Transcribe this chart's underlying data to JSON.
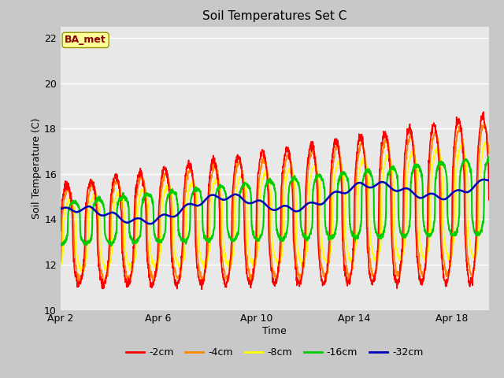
{
  "title": "Soil Temperatures Set C",
  "xlabel": "Time",
  "ylabel": "Soil Temperature (C)",
  "ylim": [
    10,
    22.5
  ],
  "xlim_days": 17.5,
  "yticks": [
    10,
    12,
    14,
    16,
    18,
    20,
    22
  ],
  "xtick_labels": [
    "Apr 2",
    "Apr 6",
    "Apr 10",
    "Apr 14",
    "Apr 18"
  ],
  "xtick_positions": [
    0,
    4,
    8,
    12,
    16
  ],
  "fig_bg_color": "#c8c8c8",
  "plot_bg_color": "#e8e8e8",
  "grid_color": "#ffffff",
  "annotation_text": "BA_met",
  "annotation_bg": "#ffff99",
  "annotation_border": "#999900",
  "annotation_text_color": "#880000",
  "series_colors": {
    "-2cm": "#ff0000",
    "-4cm": "#ff8800",
    "-8cm": "#ffff00",
    "-16cm": "#00cc00",
    "-32cm": "#0000bb"
  },
  "series_lw": {
    "-2cm": 1.2,
    "-4cm": 1.2,
    "-8cm": 1.2,
    "-16cm": 1.5,
    "-32cm": 1.8
  }
}
